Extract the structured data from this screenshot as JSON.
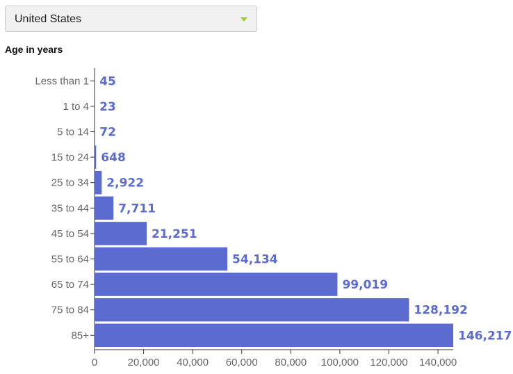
{
  "selector": {
    "selected": "United States"
  },
  "chart_data": {
    "type": "bar",
    "orientation": "horizontal",
    "xlabel": "",
    "ylabel": "Age in years",
    "categories": [
      "Less than 1",
      "1 to 4",
      "5 to 14",
      "15 to 24",
      "25 to 34",
      "35 to 44",
      "45 to 54",
      "55 to 64",
      "65 to 74",
      "75 to 84",
      "85+"
    ],
    "values": [
      45,
      23,
      72,
      648,
      2922,
      7711,
      21251,
      54134,
      99019,
      128192,
      146217
    ],
    "value_labels": [
      "45",
      "23",
      "72",
      "648",
      "2,922",
      "7,711",
      "21,251",
      "54,134",
      "99,019",
      "128,192",
      "146,217"
    ],
    "xlim": [
      0,
      146217
    ],
    "x_ticks": [
      0,
      20000,
      40000,
      60000,
      80000,
      100000,
      120000,
      140000
    ],
    "x_tick_labels": [
      "0",
      "20,000",
      "40,000",
      "60,000",
      "80,000",
      "100,000",
      "120,000",
      "140,000"
    ],
    "grid": false,
    "colors": {
      "bar": "#5b6bcf",
      "value_label": "#5b6bcf"
    }
  }
}
